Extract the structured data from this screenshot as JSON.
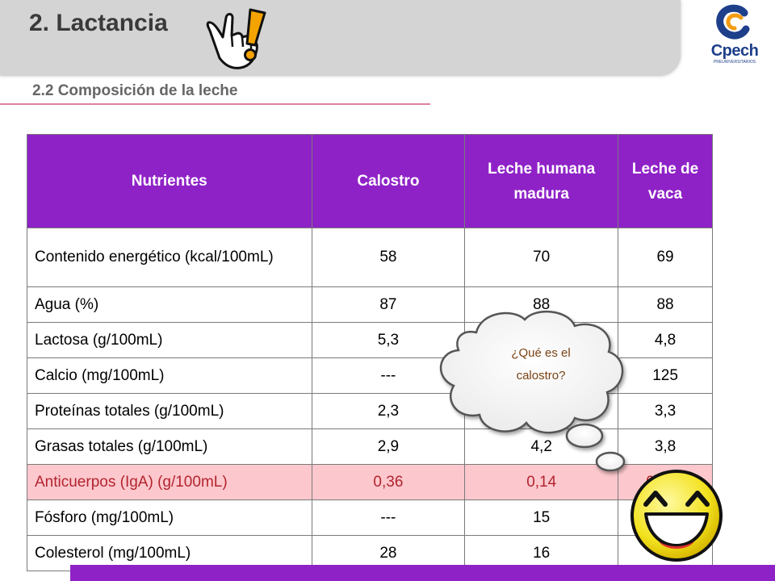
{
  "header": {
    "title": "2. Lactancia",
    "subtitle": "2.2 Composición de la leche",
    "logo_text": "Cpech",
    "logo_subtext": "PREUNIVERSITARIOS",
    "hand_icon": "pointing-hand-exclamation-icon"
  },
  "table": {
    "headers": [
      "Nutrientes",
      "Calostro",
      "Leche humana madura",
      "Leche de vaca"
    ],
    "rows": [
      {
        "name": "Contenido energético (kcal/100mL)",
        "calostro": "58",
        "humana": "70",
        "vaca": "69"
      },
      {
        "name": "Agua (%)",
        "calostro": "87",
        "humana": "88",
        "vaca": "88"
      },
      {
        "name": "Lactosa (g/100mL)",
        "calostro": "5,3",
        "humana": "",
        "vaca": "4,8"
      },
      {
        "name": "Calcio (mg/100mL)",
        "calostro": "---",
        "humana": "",
        "vaca": "125"
      },
      {
        "name": "Proteínas totales (g/100mL)",
        "calostro": "2,3",
        "humana": "",
        "vaca": "3,3"
      },
      {
        "name": "Grasas totales (g/100mL)",
        "calostro": "2,9",
        "humana": "4,2",
        "vaca": "3,8"
      },
      {
        "name": "Anticuerpos (IgA) (g/100mL)",
        "calostro": "0,36",
        "humana": "0,14",
        "vaca": "0,003"
      },
      {
        "name": "Fósforo  (mg/100mL)",
        "calostro": "---",
        "humana": "15",
        "vaca": ""
      },
      {
        "name": "Colesterol (mg/100mL)",
        "calostro": "28",
        "humana": "16",
        "vaca": ""
      }
    ]
  },
  "callout": {
    "line1": "¿Qué es el",
    "line2": "calostro?"
  },
  "colors": {
    "accent_purple": "#8f22c7",
    "highlight_row_bg": "#fcc8cd",
    "highlight_row_text": "#b3242f",
    "logo_blue": "#1e3f8a",
    "logo_orange": "#f39c12"
  },
  "icons": {
    "thought_bubble": "thought-bubble-icon",
    "smiley": "laughing-smiley-icon"
  }
}
